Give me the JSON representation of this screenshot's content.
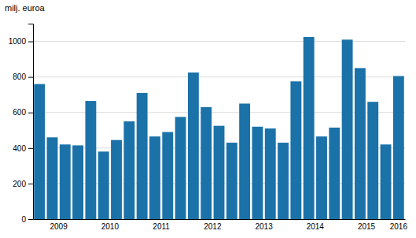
{
  "chart_data": {
    "type": "bar",
    "ylabel": "milj. euroa",
    "categories": [
      "2009",
      null,
      null,
      null,
      "2010",
      null,
      null,
      null,
      "2011",
      null,
      null,
      null,
      "2012",
      null,
      null,
      null,
      "2013",
      null,
      null,
      null,
      "2014",
      null,
      null,
      null,
      "2015",
      null,
      null,
      null,
      "2016"
    ],
    "values": [
      760,
      460,
      420,
      415,
      665,
      380,
      445,
      550,
      710,
      465,
      490,
      575,
      825,
      630,
      525,
      430,
      650,
      520,
      510,
      430,
      775,
      1025,
      465,
      515,
      1010,
      850,
      660,
      420,
      805
    ],
    "color": "#1a72a8",
    "ylim": [
      0,
      1100
    ],
    "yticks": [
      0,
      200,
      400,
      600,
      800,
      1000
    ],
    "grid": true
  }
}
